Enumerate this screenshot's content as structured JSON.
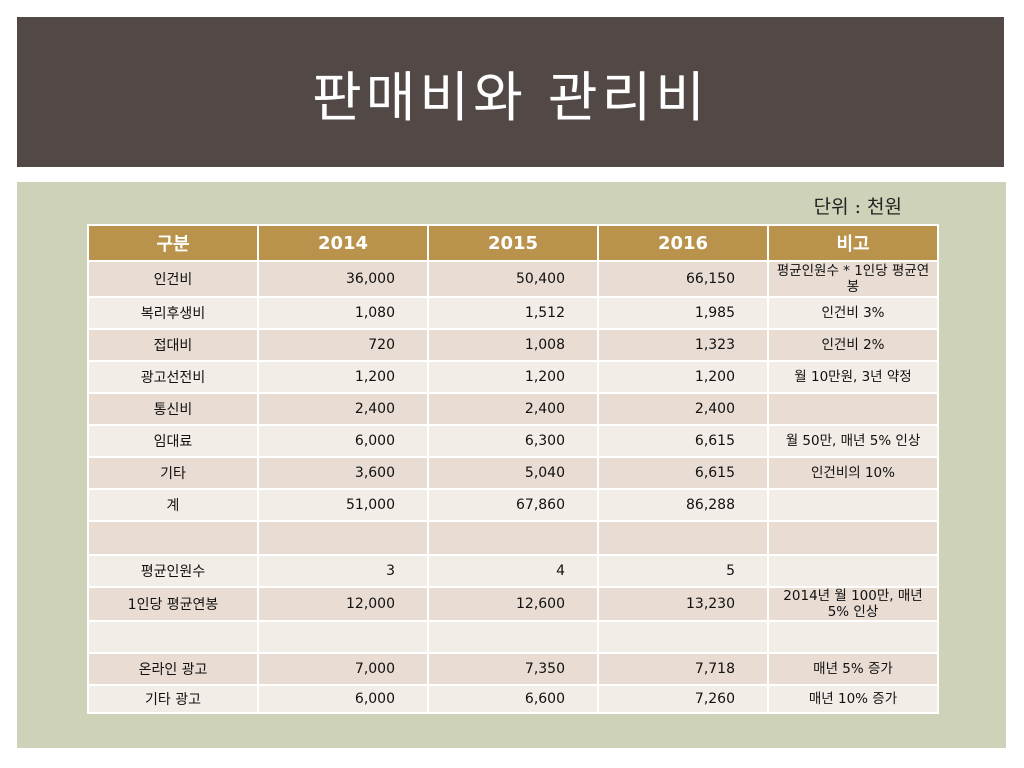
{
  "title": "판매비와 관리비",
  "unit_note": "단위 : 천원",
  "table": {
    "headers": [
      "구분",
      "2014",
      "2015",
      "2016",
      "비고"
    ],
    "rows": [
      {
        "label": "인건비",
        "y2014": "36,000",
        "y2015": "50,400",
        "y2016": "66,150",
        "note": "평균인원수 * 1인당 평균연봉"
      },
      {
        "label": "복리후생비",
        "y2014": "1,080",
        "y2015": "1,512",
        "y2016": "1,985",
        "note": "인건비 3%"
      },
      {
        "label": "접대비",
        "y2014": "720",
        "y2015": "1,008",
        "y2016": "1,323",
        "note": "인건비 2%"
      },
      {
        "label": "광고선전비",
        "y2014": "1,200",
        "y2015": "1,200",
        "y2016": "1,200",
        "note": "월 10만원, 3년 약정"
      },
      {
        "label": "통신비",
        "y2014": "2,400",
        "y2015": "2,400",
        "y2016": "2,400",
        "note": ""
      },
      {
        "label": "임대료",
        "y2014": "6,000",
        "y2015": "6,300",
        "y2016": "6,615",
        "note": "월 50만, 매년 5% 인상"
      },
      {
        "label": "기타",
        "y2014": "3,600",
        "y2015": "5,040",
        "y2016": "6,615",
        "note": "인건비의 10%"
      },
      {
        "label": "계",
        "y2014": "51,000",
        "y2015": "67,860",
        "y2016": "86,288",
        "note": ""
      },
      {
        "label": "",
        "y2014": "",
        "y2015": "",
        "y2016": "",
        "note": ""
      },
      {
        "label": "평균인원수",
        "y2014": "3",
        "y2015": "4",
        "y2016": "5",
        "note": ""
      },
      {
        "label": "1인당 평균연봉",
        "y2014": "12,000",
        "y2015": "12,600",
        "y2016": "13,230",
        "note": "2014년 월 100만, 매년 5% 인상"
      },
      {
        "label": "",
        "y2014": "",
        "y2015": "",
        "y2016": "",
        "note": ""
      },
      {
        "label": "온라인 광고",
        "y2014": "7,000",
        "y2015": "7,350",
        "y2016": "7,718",
        "note": "매년 5% 증가"
      },
      {
        "label": "기타 광고",
        "y2014": "6,000",
        "y2015": "6,600",
        "y2016": "7,260",
        "note": "매년 10% 증가"
      }
    ]
  }
}
